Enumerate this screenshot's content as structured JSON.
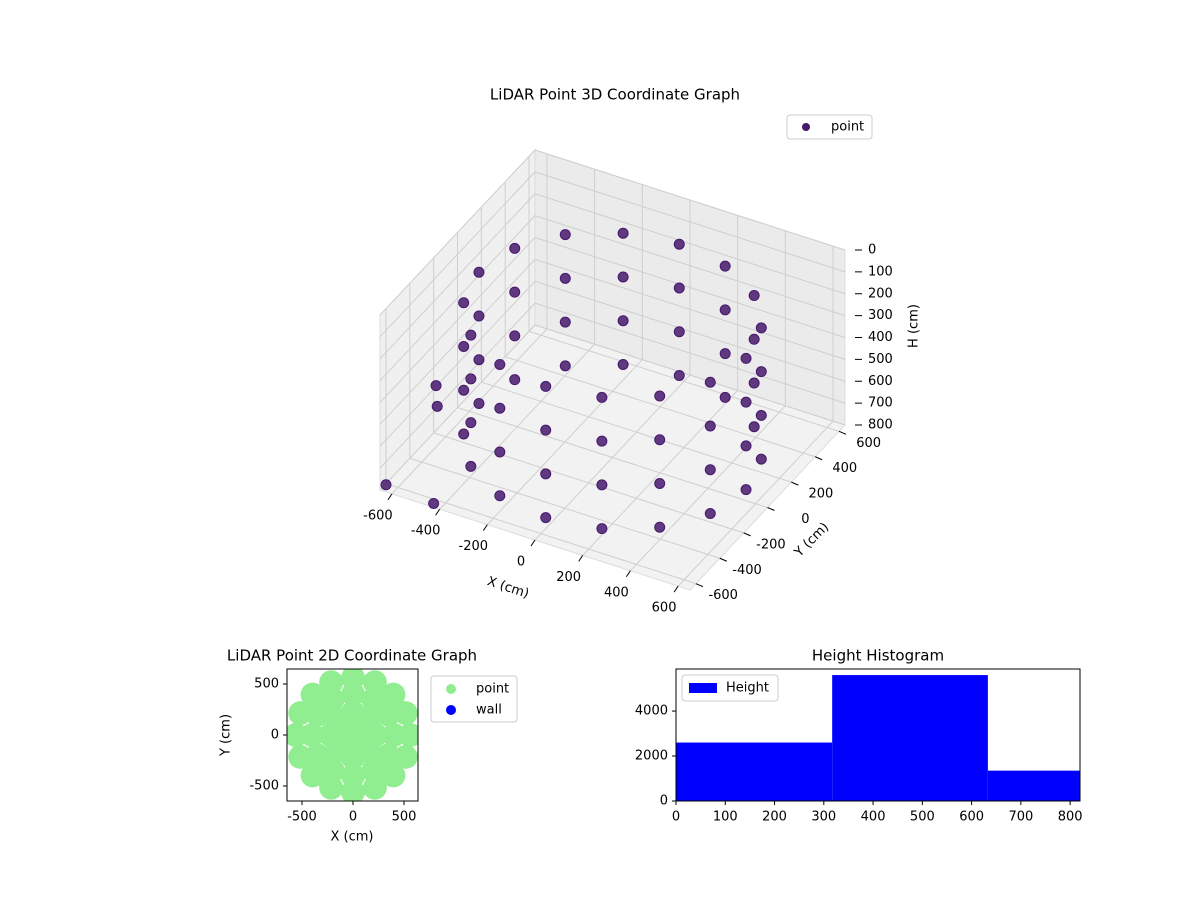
{
  "chart_data": [
    {
      "type": "scatter3d",
      "title": "LiDAR Point 3D Coordinate Graph",
      "x_label": "X (cm)",
      "y_label": "Y (cm)",
      "z_label": "H (cm)",
      "xlim": [
        -650,
        650
      ],
      "ylim": [
        -650,
        650
      ],
      "zlim": [
        800,
        0
      ],
      "xticks": [
        -600,
        -400,
        -200,
        0,
        200,
        400,
        600
      ],
      "yticks": [
        -600,
        -400,
        -200,
        0,
        200,
        400,
        600
      ],
      "zticks": [
        0,
        100,
        200,
        300,
        400,
        500,
        600,
        700,
        800
      ],
      "legend": "upper right",
      "series": [
        {
          "name": "point",
          "color": "#46196c",
          "x": [
            560,
            517,
            396,
            214,
            0,
            -214,
            -396,
            -517,
            -560,
            -517,
            -396,
            -214,
            0,
            214,
            396,
            517,
            560,
            517,
            396,
            214,
            0,
            -214,
            -396,
            -517,
            -560,
            -517,
            -396,
            -214,
            0,
            214,
            396,
            517,
            560,
            517,
            396,
            214,
            0,
            -214,
            -396,
            -517,
            -560,
            -517,
            -396,
            -214,
            0,
            214,
            396,
            517,
            560,
            517,
            396,
            214,
            0,
            -214,
            -396,
            -517,
            -560,
            -517,
            -396,
            -214,
            0,
            214,
            396,
            517,
            -640,
            -560,
            -600,
            -430
          ],
          "y": [
            0,
            214,
            396,
            517,
            560,
            517,
            396,
            214,
            0,
            -214,
            -396,
            -517,
            -560,
            -517,
            -396,
            -214,
            0,
            214,
            396,
            517,
            560,
            517,
            396,
            214,
            0,
            -214,
            -396,
            -517,
            -560,
            -517,
            -396,
            -214,
            0,
            214,
            396,
            517,
            560,
            517,
            396,
            214,
            0,
            -214,
            -396,
            -517,
            -560,
            -517,
            -396,
            -214,
            0,
            214,
            396,
            517,
            560,
            517,
            396,
            214,
            0,
            -214,
            -396,
            -517,
            -560,
            -517,
            -396,
            -214,
            -620,
            -350,
            -280,
            -640
          ],
          "z": [
            150,
            150,
            150,
            150,
            150,
            150,
            150,
            150,
            150,
            150,
            150,
            150,
            150,
            150,
            150,
            150,
            350,
            350,
            350,
            350,
            350,
            350,
            350,
            350,
            350,
            350,
            350,
            350,
            350,
            350,
            350,
            350,
            550,
            550,
            550,
            550,
            550,
            550,
            550,
            550,
            550,
            550,
            550,
            550,
            550,
            550,
            550,
            550,
            750,
            750,
            750,
            750,
            750,
            750,
            750,
            750,
            750,
            750,
            750,
            750,
            750,
            750,
            750,
            750,
            790,
            560,
            520,
            790
          ]
        }
      ]
    },
    {
      "type": "scatter",
      "title": "LiDAR Point 2D Coordinate Graph",
      "x_label": "X (cm)",
      "y_label": "Y (cm)",
      "xlim": [
        -647,
        637
      ],
      "ylim": [
        -647,
        647
      ],
      "xticks": [
        -500,
        0,
        500
      ],
      "yticks": [
        -500,
        0,
        500
      ],
      "series": [
        {
          "name": "point",
          "color": "#90ee90",
          "x": [
            560,
            517,
            396,
            214,
            0,
            -214,
            -396,
            -517,
            -560,
            -517,
            -396,
            -214,
            0,
            214,
            396,
            517,
            400,
            346,
            200,
            0,
            -200,
            -346,
            -400,
            -346,
            -200,
            0,
            200,
            346,
            220,
            156,
            0,
            -156,
            -220,
            -156,
            0,
            156,
            0
          ],
          "y": [
            0,
            214,
            396,
            517,
            560,
            517,
            396,
            214,
            0,
            -214,
            -396,
            -517,
            -560,
            -517,
            -396,
            -214,
            0,
            200,
            346,
            400,
            346,
            200,
            0,
            -200,
            -346,
            -400,
            -346,
            -200,
            0,
            156,
            220,
            156,
            0,
            -156,
            -220,
            -156,
            0
          ]
        },
        {
          "name": "wall",
          "color": "#0000ff",
          "x": [],
          "y": []
        }
      ]
    },
    {
      "type": "histogram",
      "title": "Height Histogram",
      "name": "Height",
      "color": "#0000ff",
      "bins": [
        0,
        317,
        633,
        820
      ],
      "values": [
        2600,
        5600,
        1350
      ],
      "xlim": [
        0,
        820
      ],
      "ylim": [
        0,
        5870
      ],
      "xticks": [
        0,
        100,
        200,
        300,
        400,
        500,
        600,
        700,
        800
      ],
      "yticks": [
        0,
        2000,
        4000
      ]
    }
  ]
}
